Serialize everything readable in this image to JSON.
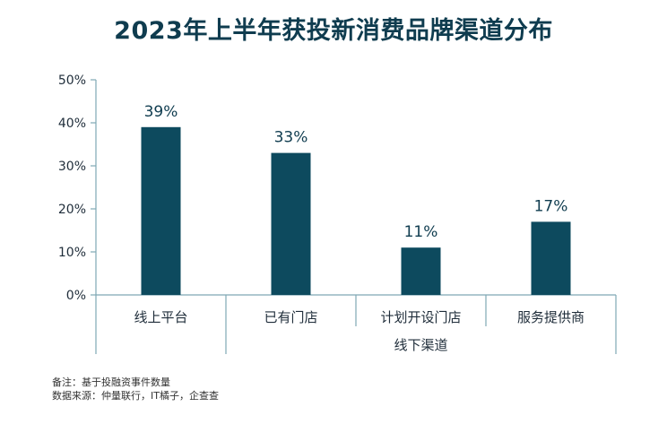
{
  "chart_data": {
    "type": "bar",
    "title": "2023年上半年获投新消费品牌渠道分布",
    "categories": [
      "线上平台",
      "已有门店",
      "计划开设门店",
      "服务提供商"
    ],
    "values": [
      39,
      33,
      11,
      17
    ],
    "value_labels": [
      "39%",
      "33%",
      "11%",
      "17%"
    ],
    "group_label": "线下渠道",
    "y_ticks": [
      "0%",
      "10%",
      "20%",
      "30%",
      "40%",
      "50%"
    ],
    "ylim": [
      0,
      50
    ],
    "grid": false,
    "bar_color": "#0d4a5e"
  },
  "notes": {
    "line1": "备注：基于投融资事件数量",
    "line2": "数据来源：仲量联行，IT橘子，企查查"
  }
}
